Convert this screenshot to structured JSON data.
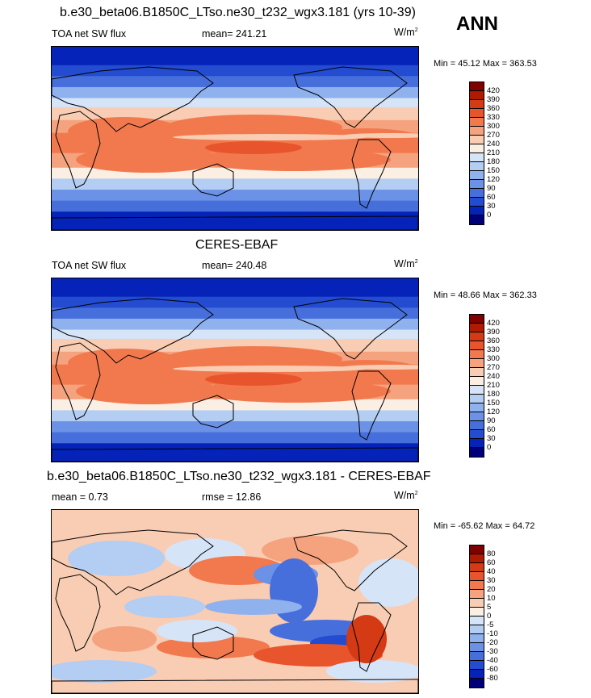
{
  "season": "ANN",
  "panels": [
    {
      "title": "b.e30_beta06.B1850C_LTso.ne30_t232_wgx3.181 (yrs 10-39)",
      "left": "TOA net SW flux",
      "center": "mean= 241.21",
      "units": "W/m",
      "units_sup": "2",
      "minmax": "Min =  45.12 Max = 363.53",
      "levels": [
        "420",
        "390",
        "360",
        "330",
        "300",
        "270",
        "240",
        "210",
        "180",
        "150",
        "120",
        "90",
        "60",
        "30",
        "0"
      ],
      "colors": [
        "#800000",
        "#b01a00",
        "#d43a14",
        "#e8552c",
        "#f2794e",
        "#f5a37e",
        "#f9cdb3",
        "#fbeee2",
        "#d6e4f8",
        "#b3cdf3",
        "#8fb1ee",
        "#6b92e6",
        "#466fdc",
        "#234cd0",
        "#0523b8",
        "#00007a"
      ],
      "field": "sw"
    },
    {
      "title": "CERES-EBAF",
      "left": "TOA net SW flux",
      "center": "mean= 240.48",
      "units": "W/m",
      "units_sup": "2",
      "minmax": "Min =  48.66 Max = 362.33",
      "levels": [
        "420",
        "390",
        "360",
        "330",
        "300",
        "270",
        "240",
        "210",
        "180",
        "150",
        "120",
        "90",
        "60",
        "30",
        "0"
      ],
      "colors": [
        "#800000",
        "#b01a00",
        "#d43a14",
        "#e8552c",
        "#f2794e",
        "#f5a37e",
        "#f9cdb3",
        "#fbeee2",
        "#d6e4f8",
        "#b3cdf3",
        "#8fb1ee",
        "#6b92e6",
        "#466fdc",
        "#234cd0",
        "#0523b8",
        "#00007a"
      ],
      "field": "sw"
    },
    {
      "title": "b.e30_beta06.B1850C_LTso.ne30_t232_wgx3.181 - CERES-EBAF",
      "left": "mean =   0.73",
      "center": "rmse =   12.86",
      "units": "W/m",
      "units_sup": "2",
      "minmax": "Min = -65.62 Max =  64.72",
      "levels": [
        "80",
        "60",
        "40",
        "30",
        "20",
        "10",
        "5",
        "0",
        "-5",
        "-10",
        "-20",
        "-30",
        "-40",
        "-60",
        "-80"
      ],
      "colors": [
        "#800000",
        "#b01a00",
        "#d43a14",
        "#e8552c",
        "#f2794e",
        "#f5a37e",
        "#f9cdb3",
        "#fbeee2",
        "#d6e4f8",
        "#b3cdf3",
        "#8fb1ee",
        "#6b92e6",
        "#466fdc",
        "#234cd0",
        "#0523b8",
        "#00007a"
      ],
      "field": "diff"
    }
  ]
}
